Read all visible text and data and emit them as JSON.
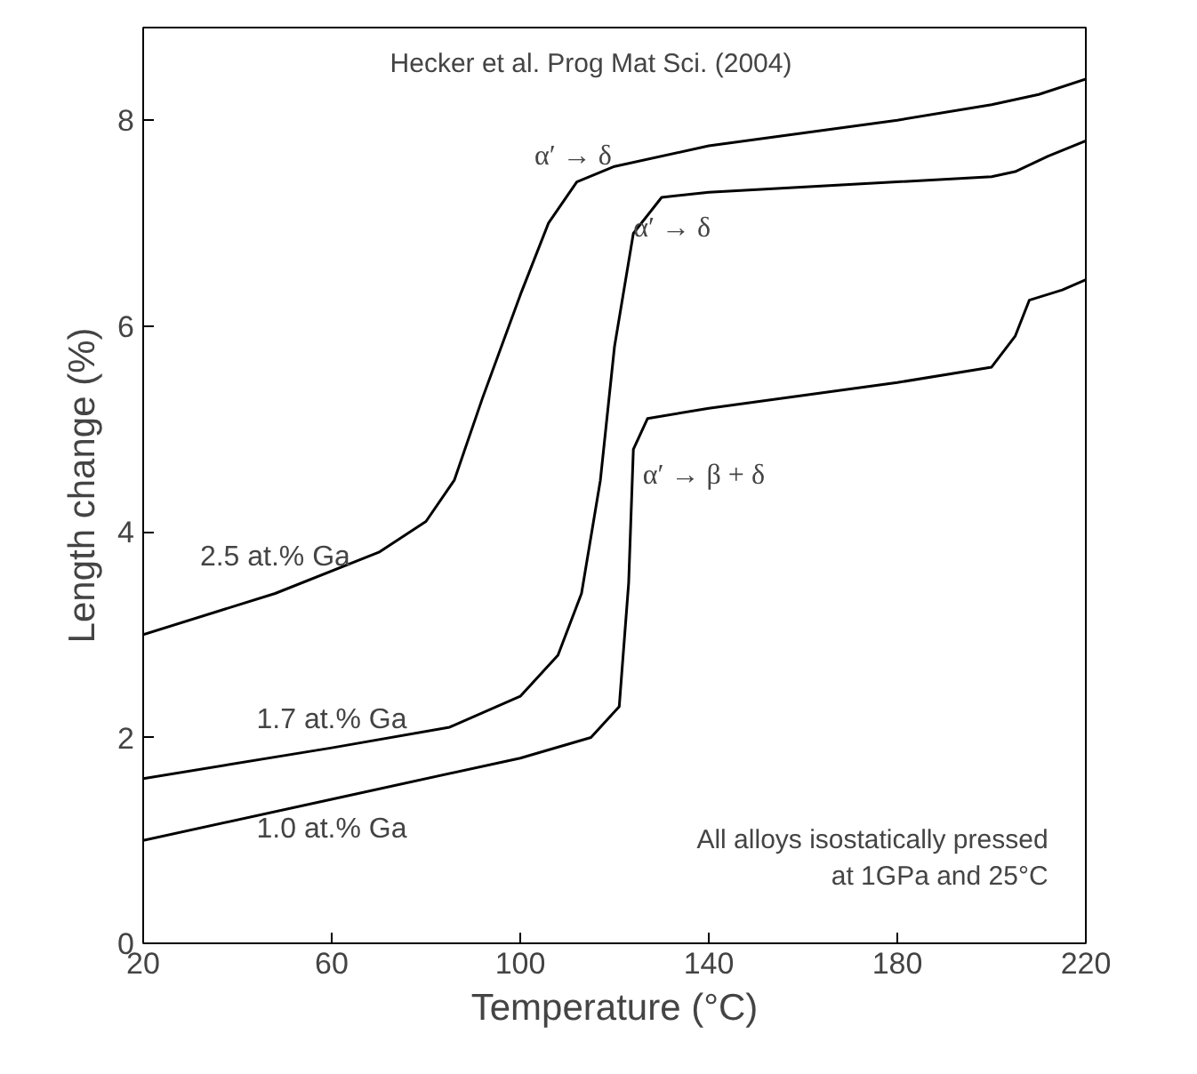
{
  "chart_data": {
    "type": "line",
    "xlabel": "Temperature (°C)",
    "ylabel": "Length change (%)",
    "xlim": [
      20,
      220
    ],
    "xticks": [
      20,
      60,
      100,
      140,
      180,
      220
    ],
    "ylim": [
      0,
      8.9
    ],
    "yticks": [
      0,
      2,
      4,
      6,
      8
    ],
    "grid": false,
    "legend": false,
    "marker": "none",
    "line_style": "solid",
    "series": [
      {
        "name": "2.5 at.% Ga",
        "color": "#000000",
        "x": [
          20,
          48,
          70,
          80,
          86,
          92,
          100,
          106,
          112,
          120,
          140,
          180,
          200,
          210,
          220
        ],
        "values": [
          3.0,
          3.4,
          3.8,
          4.1,
          4.5,
          5.3,
          6.3,
          7.0,
          7.4,
          7.55,
          7.75,
          8.0,
          8.15,
          8.25,
          8.4
        ]
      },
      {
        "name": "1.7 at.% Ga",
        "color": "#000000",
        "x": [
          20,
          60,
          85,
          100,
          108,
          113,
          117,
          120,
          124,
          130,
          140,
          180,
          200,
          205,
          212,
          220
        ],
        "values": [
          1.6,
          1.9,
          2.1,
          2.4,
          2.8,
          3.4,
          4.5,
          5.8,
          6.9,
          7.25,
          7.3,
          7.4,
          7.45,
          7.5,
          7.65,
          7.8
        ]
      },
      {
        "name": "1.0 at.% Ga",
        "color": "#000000",
        "x": [
          20,
          60,
          100,
          115,
          121,
          123,
          124,
          127,
          140,
          180,
          200,
          205,
          208,
          215,
          220
        ],
        "values": [
          1.0,
          1.4,
          1.8,
          2.0,
          2.3,
          3.5,
          4.8,
          5.1,
          5.2,
          5.45,
          5.6,
          5.9,
          6.25,
          6.35,
          6.45
        ]
      }
    ],
    "annotations": [
      "Hecker et al. Prog Mat Sci. (2004)",
      "α′ → δ",
      "α′ → δ",
      "α′ → β + δ",
      "All alloys isostatically pressed\nat 1GPa and 25°C"
    ]
  }
}
